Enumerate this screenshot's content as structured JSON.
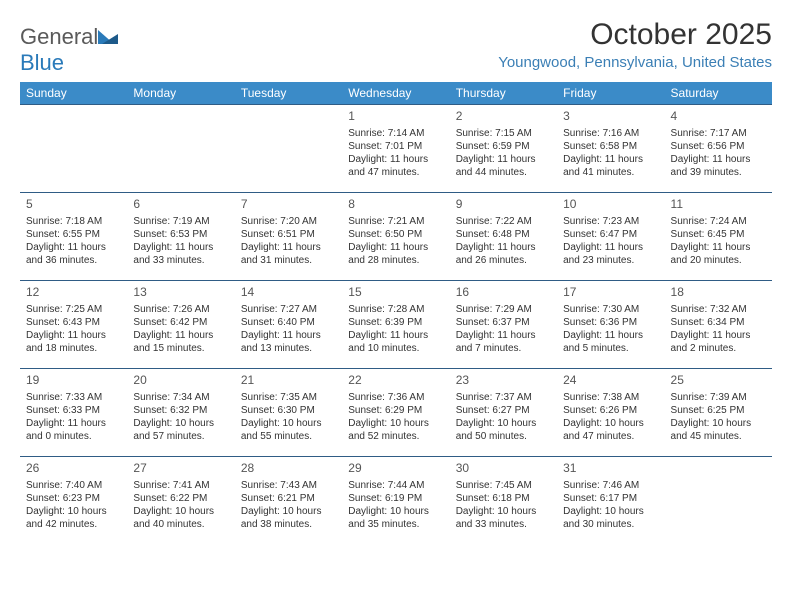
{
  "brand": {
    "part1": "General",
    "part2": "Blue"
  },
  "header": {
    "month_title": "October 2025",
    "location": "Youngwood, Pennsylvania, United States"
  },
  "colors": {
    "header_bg": "#3b8bc8",
    "header_text": "#ffffff",
    "cell_border": "#2f5c85",
    "location_text": "#3b7fb5",
    "logo_gray": "#5a5a5a",
    "logo_blue": "#2a7ab9"
  },
  "day_names": [
    "Sunday",
    "Monday",
    "Tuesday",
    "Wednesday",
    "Thursday",
    "Friday",
    "Saturday"
  ],
  "layout": {
    "first_weekday_index": 3,
    "days_in_month": 31
  },
  "days": [
    {
      "n": 1,
      "sunrise": "7:14 AM",
      "sunset": "7:01 PM",
      "daylight": "11 hours and 47 minutes."
    },
    {
      "n": 2,
      "sunrise": "7:15 AM",
      "sunset": "6:59 PM",
      "daylight": "11 hours and 44 minutes."
    },
    {
      "n": 3,
      "sunrise": "7:16 AM",
      "sunset": "6:58 PM",
      "daylight": "11 hours and 41 minutes."
    },
    {
      "n": 4,
      "sunrise": "7:17 AM",
      "sunset": "6:56 PM",
      "daylight": "11 hours and 39 minutes."
    },
    {
      "n": 5,
      "sunrise": "7:18 AM",
      "sunset": "6:55 PM",
      "daylight": "11 hours and 36 minutes."
    },
    {
      "n": 6,
      "sunrise": "7:19 AM",
      "sunset": "6:53 PM",
      "daylight": "11 hours and 33 minutes."
    },
    {
      "n": 7,
      "sunrise": "7:20 AM",
      "sunset": "6:51 PM",
      "daylight": "11 hours and 31 minutes."
    },
    {
      "n": 8,
      "sunrise": "7:21 AM",
      "sunset": "6:50 PM",
      "daylight": "11 hours and 28 minutes."
    },
    {
      "n": 9,
      "sunrise": "7:22 AM",
      "sunset": "6:48 PM",
      "daylight": "11 hours and 26 minutes."
    },
    {
      "n": 10,
      "sunrise": "7:23 AM",
      "sunset": "6:47 PM",
      "daylight": "11 hours and 23 minutes."
    },
    {
      "n": 11,
      "sunrise": "7:24 AM",
      "sunset": "6:45 PM",
      "daylight": "11 hours and 20 minutes."
    },
    {
      "n": 12,
      "sunrise": "7:25 AM",
      "sunset": "6:43 PM",
      "daylight": "11 hours and 18 minutes."
    },
    {
      "n": 13,
      "sunrise": "7:26 AM",
      "sunset": "6:42 PM",
      "daylight": "11 hours and 15 minutes."
    },
    {
      "n": 14,
      "sunrise": "7:27 AM",
      "sunset": "6:40 PM",
      "daylight": "11 hours and 13 minutes."
    },
    {
      "n": 15,
      "sunrise": "7:28 AM",
      "sunset": "6:39 PM",
      "daylight": "11 hours and 10 minutes."
    },
    {
      "n": 16,
      "sunrise": "7:29 AM",
      "sunset": "6:37 PM",
      "daylight": "11 hours and 7 minutes."
    },
    {
      "n": 17,
      "sunrise": "7:30 AM",
      "sunset": "6:36 PM",
      "daylight": "11 hours and 5 minutes."
    },
    {
      "n": 18,
      "sunrise": "7:32 AM",
      "sunset": "6:34 PM",
      "daylight": "11 hours and 2 minutes."
    },
    {
      "n": 19,
      "sunrise": "7:33 AM",
      "sunset": "6:33 PM",
      "daylight": "11 hours and 0 minutes."
    },
    {
      "n": 20,
      "sunrise": "7:34 AM",
      "sunset": "6:32 PM",
      "daylight": "10 hours and 57 minutes."
    },
    {
      "n": 21,
      "sunrise": "7:35 AM",
      "sunset": "6:30 PM",
      "daylight": "10 hours and 55 minutes."
    },
    {
      "n": 22,
      "sunrise": "7:36 AM",
      "sunset": "6:29 PM",
      "daylight": "10 hours and 52 minutes."
    },
    {
      "n": 23,
      "sunrise": "7:37 AM",
      "sunset": "6:27 PM",
      "daylight": "10 hours and 50 minutes."
    },
    {
      "n": 24,
      "sunrise": "7:38 AM",
      "sunset": "6:26 PM",
      "daylight": "10 hours and 47 minutes."
    },
    {
      "n": 25,
      "sunrise": "7:39 AM",
      "sunset": "6:25 PM",
      "daylight": "10 hours and 45 minutes."
    },
    {
      "n": 26,
      "sunrise": "7:40 AM",
      "sunset": "6:23 PM",
      "daylight": "10 hours and 42 minutes."
    },
    {
      "n": 27,
      "sunrise": "7:41 AM",
      "sunset": "6:22 PM",
      "daylight": "10 hours and 40 minutes."
    },
    {
      "n": 28,
      "sunrise": "7:43 AM",
      "sunset": "6:21 PM",
      "daylight": "10 hours and 38 minutes."
    },
    {
      "n": 29,
      "sunrise": "7:44 AM",
      "sunset": "6:19 PM",
      "daylight": "10 hours and 35 minutes."
    },
    {
      "n": 30,
      "sunrise": "7:45 AM",
      "sunset": "6:18 PM",
      "daylight": "10 hours and 33 minutes."
    },
    {
      "n": 31,
      "sunrise": "7:46 AM",
      "sunset": "6:17 PM",
      "daylight": "10 hours and 30 minutes."
    }
  ],
  "labels": {
    "sunrise": "Sunrise:",
    "sunset": "Sunset:",
    "daylight": "Daylight:"
  }
}
